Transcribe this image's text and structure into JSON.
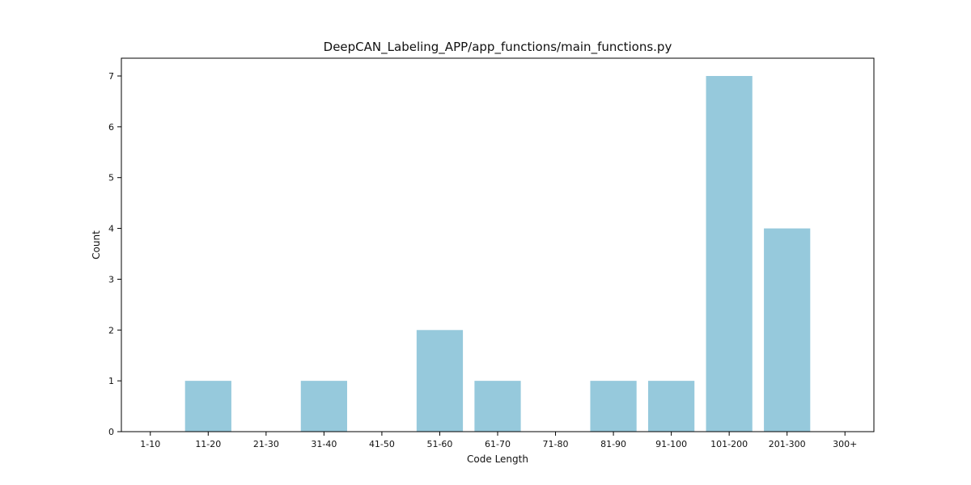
{
  "chart_data": {
    "type": "bar",
    "title": "DeepCAN_Labeling_APP/app_functions/main_functions.py",
    "xlabel": "Code Length",
    "ylabel": "Count",
    "categories": [
      "1-10",
      "11-20",
      "21-30",
      "31-40",
      "41-50",
      "51-60",
      "61-70",
      "71-80",
      "81-90",
      "91-100",
      "101-200",
      "201-300",
      "300+"
    ],
    "values": [
      0,
      1,
      0,
      1,
      0,
      2,
      1,
      0,
      1,
      1,
      7,
      4,
      0
    ],
    "ylim": [
      0,
      7.35
    ],
    "yticks": [
      0,
      1,
      2,
      3,
      4,
      5,
      6,
      7
    ],
    "bar_color": "#96c9dc",
    "grid": false,
    "legend": "none"
  }
}
